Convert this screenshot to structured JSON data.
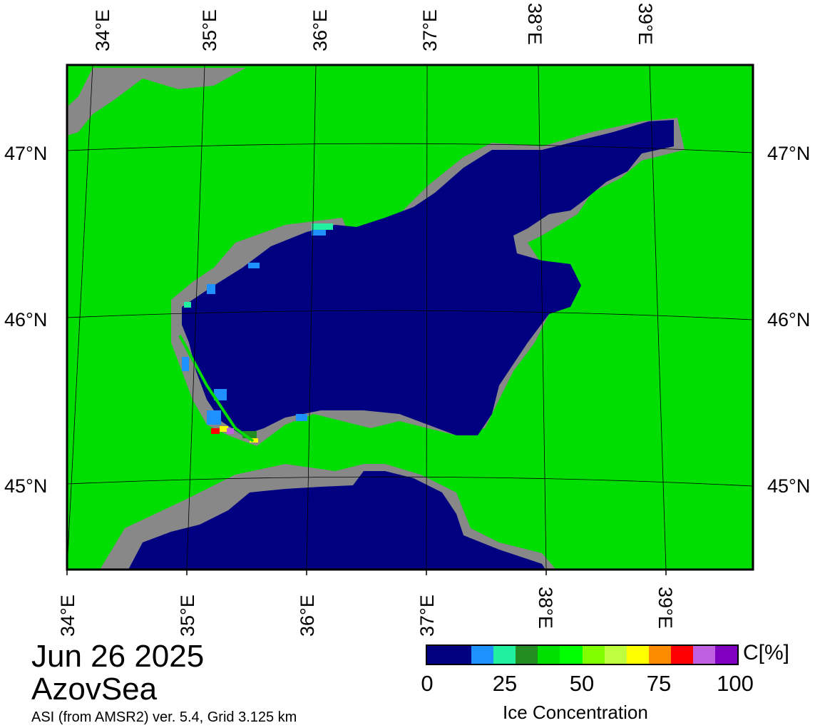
{
  "map": {
    "lon_labels": [
      "34°E",
      "35°E",
      "36°E",
      "37°E",
      "38°E",
      "39°E"
    ],
    "lat_labels": [
      "47°N",
      "46°N",
      "45°N"
    ],
    "colors": {
      "land": "#00dd00",
      "ocean": "#000080",
      "coast": "#888888",
      "grid": "#000000"
    }
  },
  "caption": {
    "date": "Jun 26 2025",
    "region": "AzovSea",
    "source": "ASI (from AMSR2) ver. 5.4,  Grid 3.125 km"
  },
  "colorbar": {
    "unit": "C[%]",
    "title": "Ice Concentration",
    "ticks": [
      "0",
      "25",
      "50",
      "75",
      "100"
    ],
    "colors": [
      "#000080",
      "#000080",
      "#1e90ff",
      "#20f0a0",
      "#228b22",
      "#00e000",
      "#00ff00",
      "#80ff00",
      "#c0ff40",
      "#ffff00",
      "#ff8c00",
      "#ff0000",
      "#c060e0",
      "#8000c0"
    ]
  }
}
